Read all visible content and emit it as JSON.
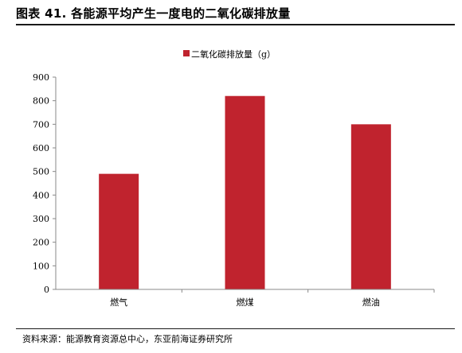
{
  "header": {
    "title": "图表 41. 各能源平均产生一度电的二氧化碳排放量"
  },
  "footer": {
    "source": "资料来源：能源教育资源总中心，东亚前海证券研究所"
  },
  "chart_data": {
    "type": "bar",
    "categories": [
      "燃气",
      "燃煤",
      "燃油"
    ],
    "series": [
      {
        "name": "二氧化碳排放量（g）",
        "values": [
          490,
          820,
          700
        ]
      }
    ],
    "ylim": [
      0,
      900
    ],
    "yticks": [
      0,
      100,
      200,
      300,
      400,
      500,
      600,
      700,
      800,
      900
    ],
    "grid": false,
    "legend": "top-center",
    "colors": {
      "bar": "#C0232E",
      "axis": "#888888"
    }
  }
}
